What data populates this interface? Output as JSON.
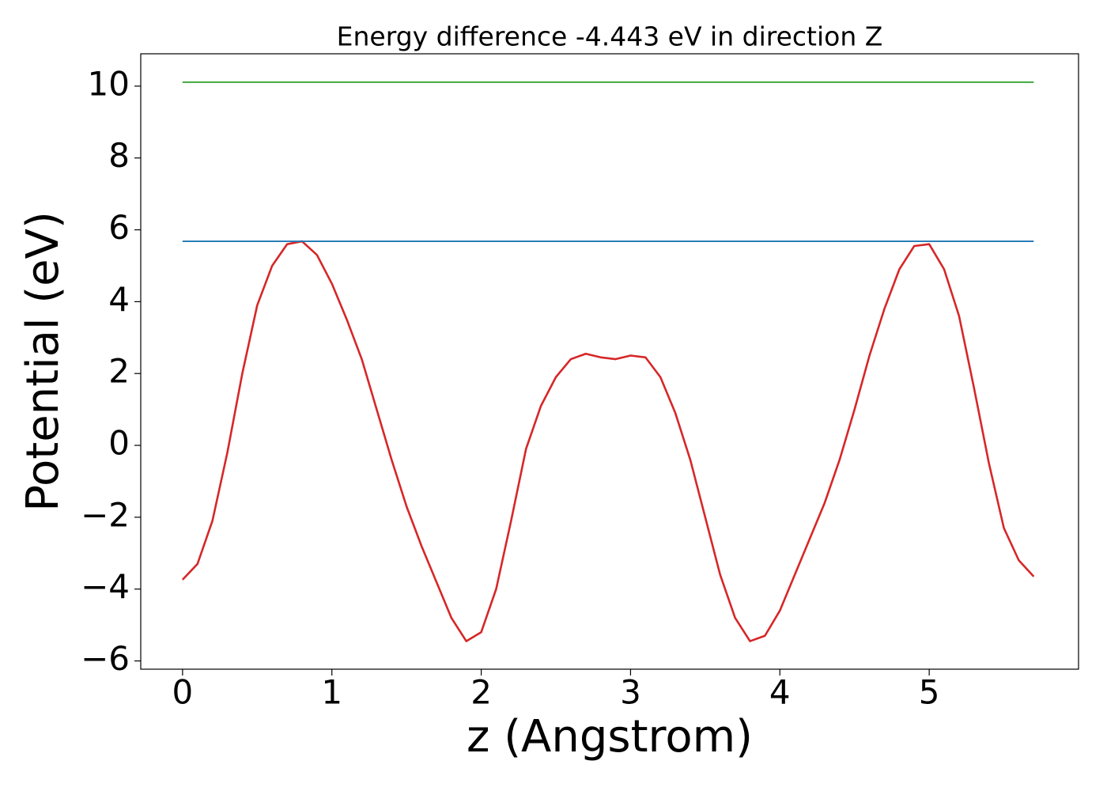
{
  "chart_data": {
    "type": "line",
    "title": "Energy difference -4.443 eV in direction Z",
    "xlabel": "z (Angstrom)",
    "ylabel": "Potential (eV)",
    "xlim": [
      -0.28,
      6.0
    ],
    "ylim": [
      -6.23,
      10.9
    ],
    "xticks": [
      0,
      1,
      2,
      3,
      4,
      5
    ],
    "yticks": [
      {
        "value": -6,
        "label": "−6"
      },
      {
        "value": -4,
        "label": "−4"
      },
      {
        "value": -2,
        "label": "−2"
      },
      0,
      2,
      4,
      6,
      8,
      10
    ],
    "series": [
      {
        "color": "#d62728",
        "x": [
          0,
          0.1,
          0.2,
          0.3,
          0.4,
          0.5,
          0.6,
          0.7,
          0.8,
          0.9,
          1.0,
          1.1,
          1.2,
          1.3,
          1.4,
          1.5,
          1.6,
          1.7,
          1.8,
          1.9,
          2.0,
          2.1,
          2.2,
          2.3,
          2.4,
          2.5,
          2.6,
          2.7,
          2.8,
          2.9,
          3.0,
          3.1,
          3.2,
          3.3,
          3.4,
          3.5,
          3.6,
          3.7,
          3.8,
          3.9,
          4.0,
          4.1,
          4.2,
          4.3,
          4.4,
          4.5,
          4.6,
          4.7,
          4.8,
          4.9,
          5.0,
          5.1,
          5.2,
          5.3,
          5.4,
          5.5,
          5.6,
          5.7
        ],
        "values": [
          -3.74,
          -3.3,
          -2.1,
          -0.2,
          2.0,
          3.9,
          5.0,
          5.6,
          5.68,
          5.3,
          4.5,
          3.5,
          2.4,
          1.0,
          -0.4,
          -1.7,
          -2.8,
          -3.8,
          -4.8,
          -5.45,
          -5.2,
          -4.0,
          -2.1,
          -0.1,
          1.1,
          1.9,
          2.4,
          2.55,
          2.45,
          2.4,
          2.5,
          2.45,
          1.9,
          0.9,
          -0.4,
          -2.0,
          -3.6,
          -4.8,
          -5.45,
          -5.3,
          -4.6,
          -3.6,
          -2.6,
          -1.6,
          -0.4,
          1.0,
          2.5,
          3.8,
          4.9,
          5.55,
          5.6,
          4.9,
          3.6,
          1.6,
          -0.5,
          -2.3,
          -3.2,
          -3.65
        ]
      },
      {
        "color": "#1f77b4",
        "x": [
          0,
          5.7
        ],
        "values": [
          5.68,
          5.68
        ]
      },
      {
        "color": "#2ca02c",
        "x": [
          0,
          5.7
        ],
        "values": [
          10.11,
          10.11
        ]
      }
    ]
  }
}
